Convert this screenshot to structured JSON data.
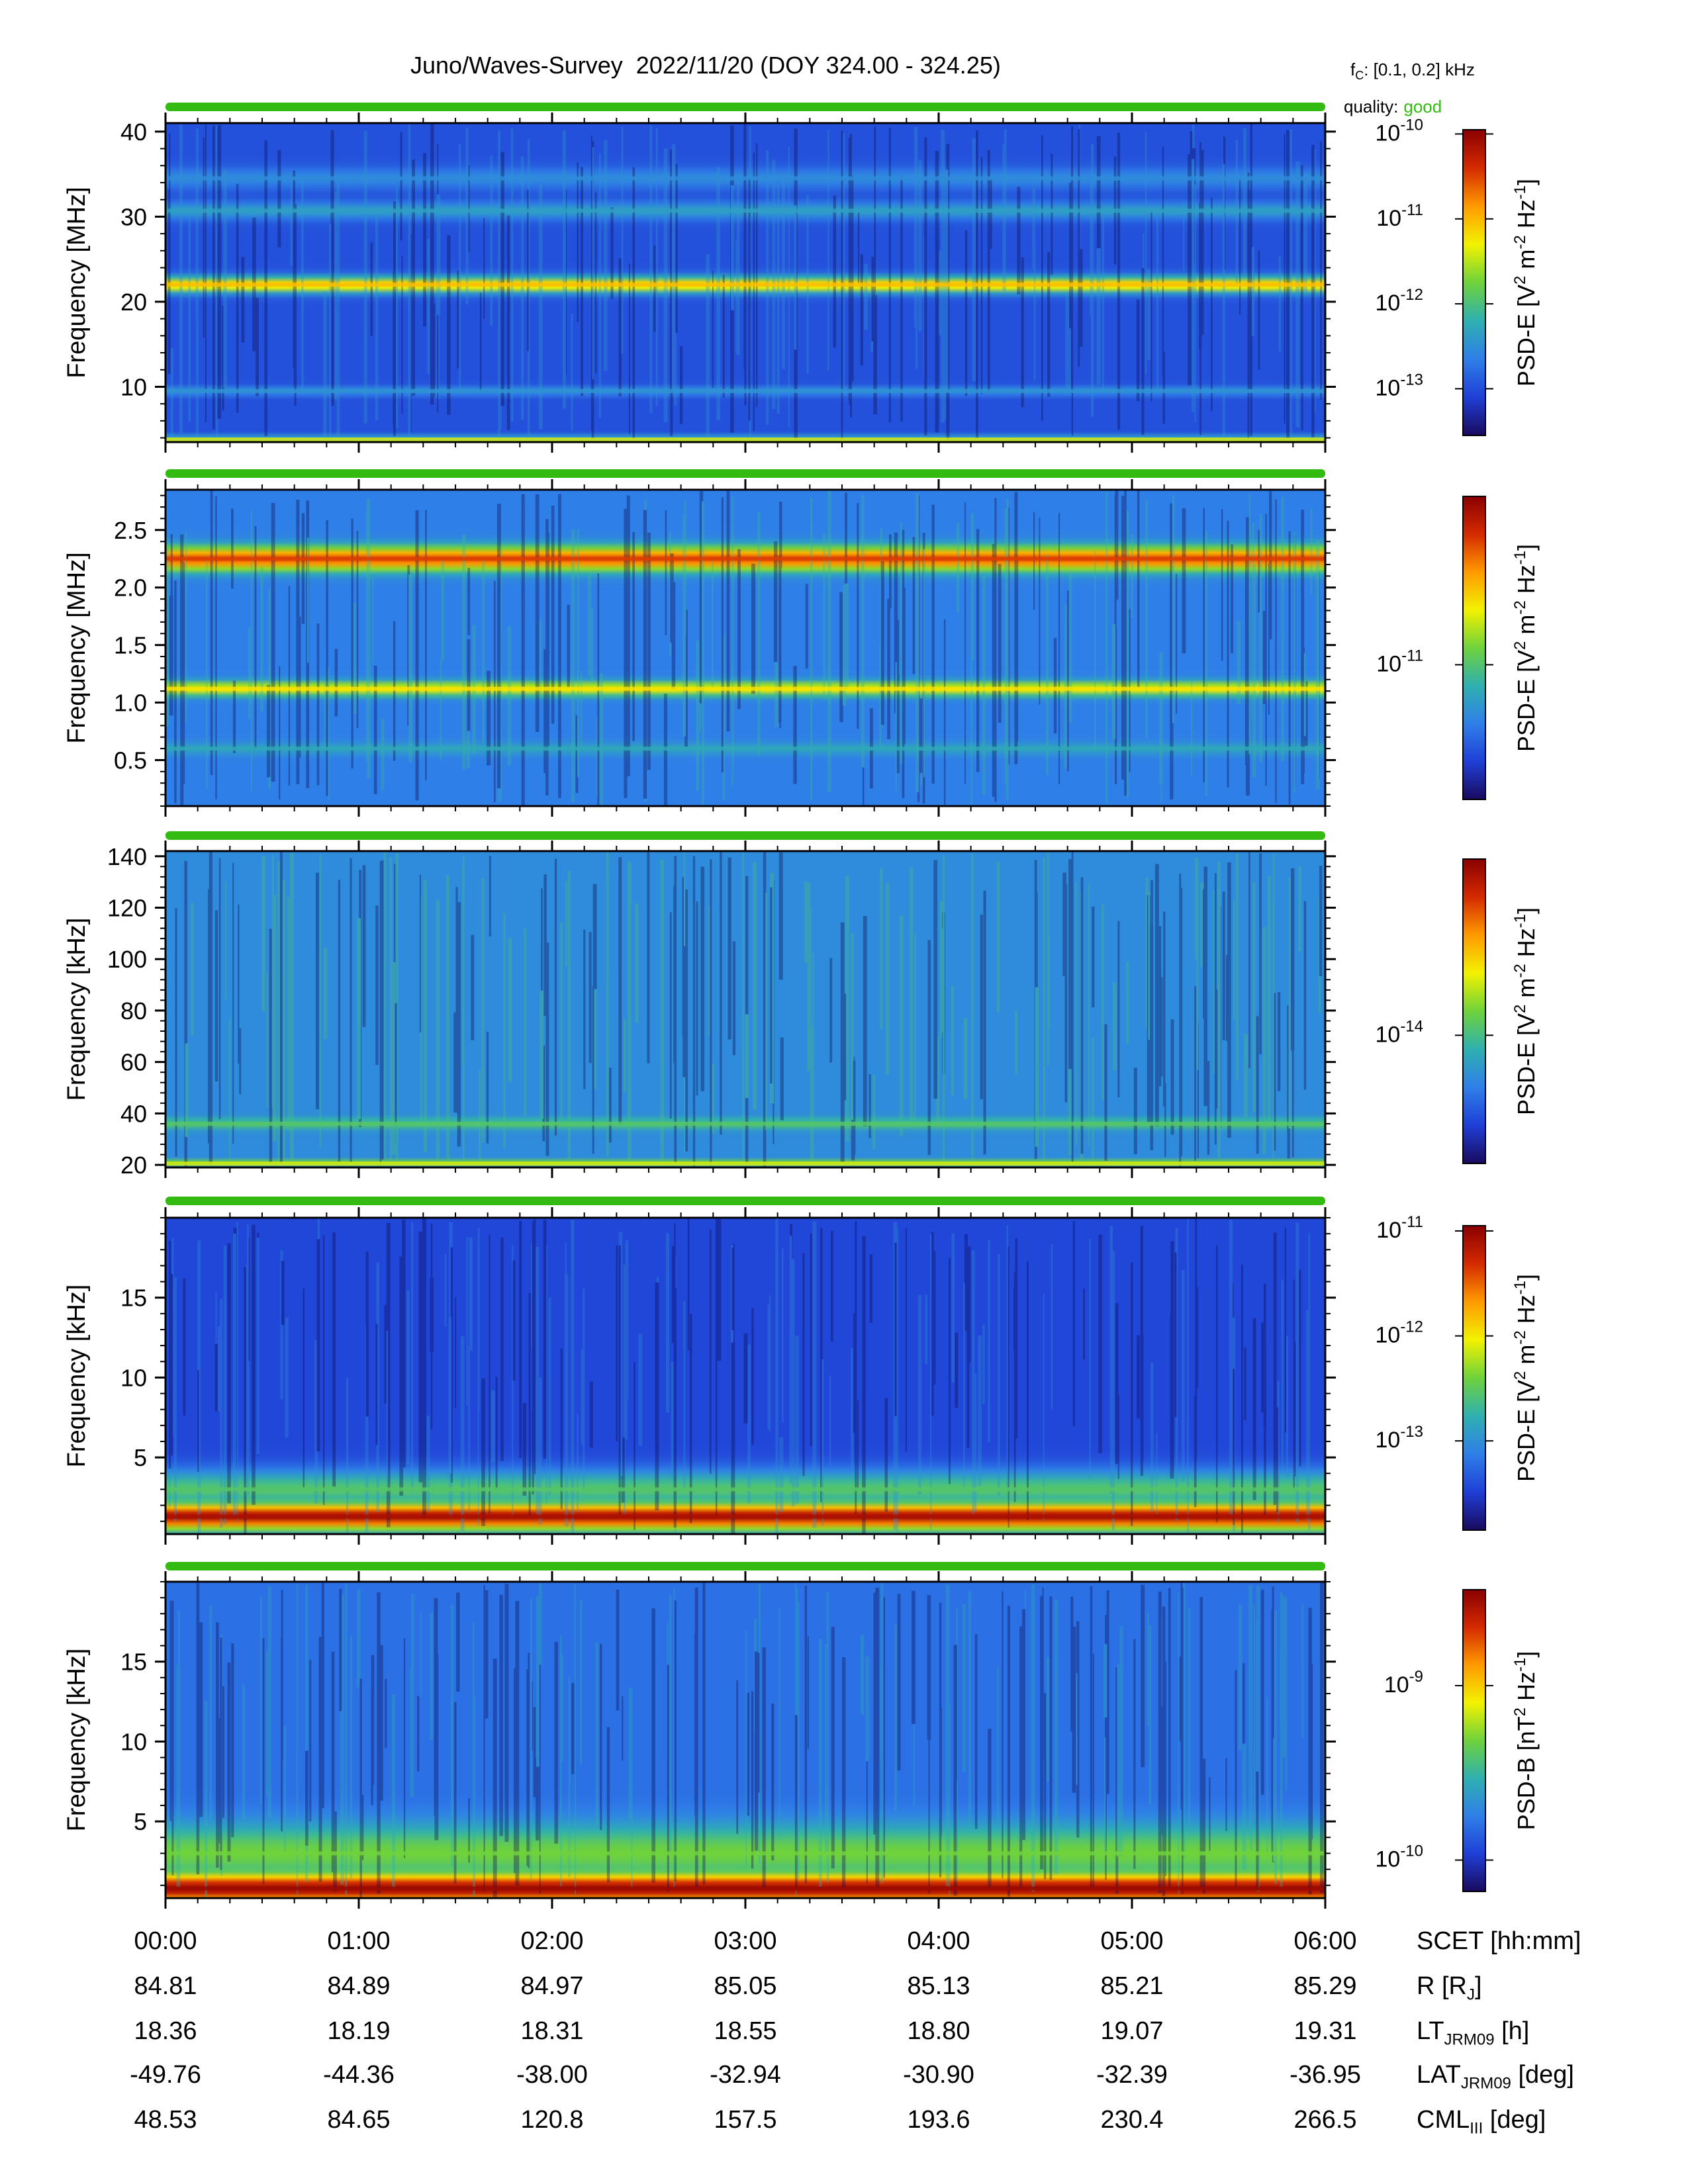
{
  "title": "Juno/Waves-Survey  2022/11/20 (DOY 324.00 - 324.25)",
  "fc": {
    "prefix": "f",
    "sub": "C",
    "text": ": [0.1, 0.2] kHz"
  },
  "quality": {
    "label": "quality:",
    "value": "good",
    "color": "#33bb11"
  },
  "colors": {
    "quality_bar": "#33bb11",
    "colormap": [
      "#1a0a5e",
      "#1f3fd6",
      "#2f7fe8",
      "#2fb0b0",
      "#6fd23c",
      "#f2f200",
      "#ff9a00",
      "#d42a00",
      "#8a0000"
    ]
  },
  "chart_data": [
    {
      "type": "heatmap",
      "ylabel": "Frequency [MHz]",
      "yticks": [
        10,
        20,
        30,
        40
      ],
      "ytick_labels": [
        "10",
        "20",
        "30",
        "40"
      ],
      "ylim": [
        3.5,
        41
      ],
      "cbar_label": {
        "pre": "PSD-E [V",
        "mid": "2",
        "a": " m",
        "b": "-2",
        "c": " Hz",
        "d": "-1",
        "end": "]"
      },
      "cbar_log_range": [
        -13.55,
        -9.95
      ],
      "cbar_ticks": [
        {
          "exp": "-10",
          "value": -10
        },
        {
          "exp": "-11",
          "value": -11
        },
        {
          "exp": "-12",
          "value": -12
        },
        {
          "exp": "-13",
          "value": -13
        }
      ],
      "features": [
        {
          "center": 22.0,
          "width": 0.9,
          "level": 0.7
        },
        {
          "center": 30.7,
          "width": 1.0,
          "level": 0.33
        },
        {
          "center": 34.5,
          "width": 1.2,
          "level": 0.28
        },
        {
          "center": 9.5,
          "width": 0.5,
          "level": 0.3
        },
        {
          "center": 3.8,
          "width": 0.3,
          "level": 0.6
        }
      ],
      "background_level": 0.16
    },
    {
      "type": "heatmap",
      "ylabel": "Frequency [MHz]",
      "yticks": [
        0.5,
        1.0,
        1.5,
        2.0,
        2.5
      ],
      "ytick_labels": [
        "0.5",
        "1.0",
        "1.5",
        "2.0",
        "2.5"
      ],
      "ylim": [
        0.1,
        2.85
      ],
      "cbar_label": {
        "pre": "PSD-E [V",
        "mid": "2",
        "a": " m",
        "b": "-2",
        "c": " Hz",
        "d": "-1",
        "end": "]"
      },
      "cbar_log_range": [
        -11.6,
        -10.25
      ],
      "cbar_ticks": [
        {
          "exp": "-11",
          "value": -11
        }
      ],
      "features": [
        {
          "center": 2.25,
          "width": 0.1,
          "level": 0.85
        },
        {
          "center": 1.12,
          "width": 0.06,
          "level": 0.65
        },
        {
          "center": 0.6,
          "width": 0.05,
          "level": 0.35
        }
      ],
      "background_level": 0.25
    },
    {
      "type": "heatmap",
      "ylabel": "Frequency [kHz]",
      "yticks": [
        20,
        40,
        60,
        80,
        100,
        120,
        140
      ],
      "ytick_labels": [
        "20",
        "40",
        "60",
        "80",
        "100",
        "120",
        "140"
      ],
      "ylim": [
        19,
        142
      ],
      "cbar_label": {
        "pre": "PSD-E [V",
        "mid": "2",
        "a": " m",
        "b": "-2",
        "c": " Hz",
        "d": "-1",
        "end": "]"
      },
      "cbar_log_range": [
        -14.4,
        -13.45
      ],
      "cbar_ticks": [
        {
          "exp": "-14",
          "value": -14
        }
      ],
      "features": [
        {
          "center": 20.5,
          "width": 0.8,
          "level": 0.6
        },
        {
          "center": 36.0,
          "width": 2.0,
          "level": 0.45
        }
      ],
      "background_level": 0.28
    },
    {
      "type": "heatmap",
      "ylabel": "Frequency [kHz]",
      "yticks": [
        5,
        10,
        15
      ],
      "ytick_labels": [
        "5",
        "10",
        "15"
      ],
      "ylim": [
        0.2,
        20
      ],
      "cbar_label": {
        "pre": "PSD-E [V",
        "mid": "2",
        "a": " m",
        "b": "-2",
        "c": " Hz",
        "d": "-1",
        "end": "]"
      },
      "cbar_log_range": [
        -13.85,
        -10.95
      ],
      "cbar_ticks": [
        {
          "exp": "-11",
          "value": -11
        },
        {
          "exp": "-12",
          "value": -12
        },
        {
          "exp": "-13",
          "value": -13
        }
      ],
      "features": [
        {
          "center": 1.3,
          "width": 0.9,
          "level": 0.95
        },
        {
          "center": 3.0,
          "width": 1.2,
          "level": 0.45
        }
      ],
      "background_level": 0.14
    },
    {
      "type": "heatmap",
      "ylabel": "Frequency [kHz]",
      "yticks": [
        5,
        10,
        15
      ],
      "ytick_labels": [
        "5",
        "10",
        "15"
      ],
      "ylim": [
        0.2,
        20
      ],
      "cbar_label": {
        "pre": "PSD-B [nT",
        "mid": "2",
        "a": " Hz",
        "b": "-1",
        "c": "",
        "d": "",
        "end": "]"
      },
      "cbar_log_range": [
        -10.18,
        -8.45
      ],
      "cbar_ticks": [
        {
          "exp": "-9",
          "value": -9
        },
        {
          "exp": "-10",
          "value": -10
        }
      ],
      "features": [
        {
          "center": 0.8,
          "width": 1.0,
          "level": 0.97
        },
        {
          "center": 3.0,
          "width": 1.8,
          "level": 0.5
        }
      ],
      "background_level": 0.22
    }
  ],
  "x_axis": {
    "xlim": [
      0,
      6
    ],
    "tick_values": [
      0,
      1,
      2,
      3,
      4,
      5,
      6
    ]
  },
  "ephemeris": [
    {
      "label": "SCET [hh:mm]",
      "label_sub": "",
      "label_after": "",
      "values": [
        "00:00",
        "01:00",
        "02:00",
        "03:00",
        "04:00",
        "05:00",
        "06:00"
      ]
    },
    {
      "label": "R [R",
      "label_sub": "J",
      "label_after": "]",
      "values": [
        "84.81",
        "84.89",
        "84.97",
        "85.05",
        "85.13",
        "85.21",
        "85.29"
      ]
    },
    {
      "label": "LT",
      "label_sub": "JRM09",
      "label_after": " [h]",
      "values": [
        "18.36",
        "18.19",
        "18.31",
        "18.55",
        "18.80",
        "19.07",
        "19.31"
      ]
    },
    {
      "label": "LAT",
      "label_sub": "JRM09",
      "label_after": " [deg]",
      "values": [
        "-49.76",
        "-44.36",
        "-38.00",
        "-32.94",
        "-30.90",
        "-32.39",
        "-36.95"
      ]
    },
    {
      "label": "CML",
      "label_sub": "III",
      "label_after": " [deg]",
      "values": [
        "48.53",
        "84.65",
        "120.8",
        "157.5",
        "193.6",
        "230.4",
        "266.5"
      ]
    }
  ]
}
